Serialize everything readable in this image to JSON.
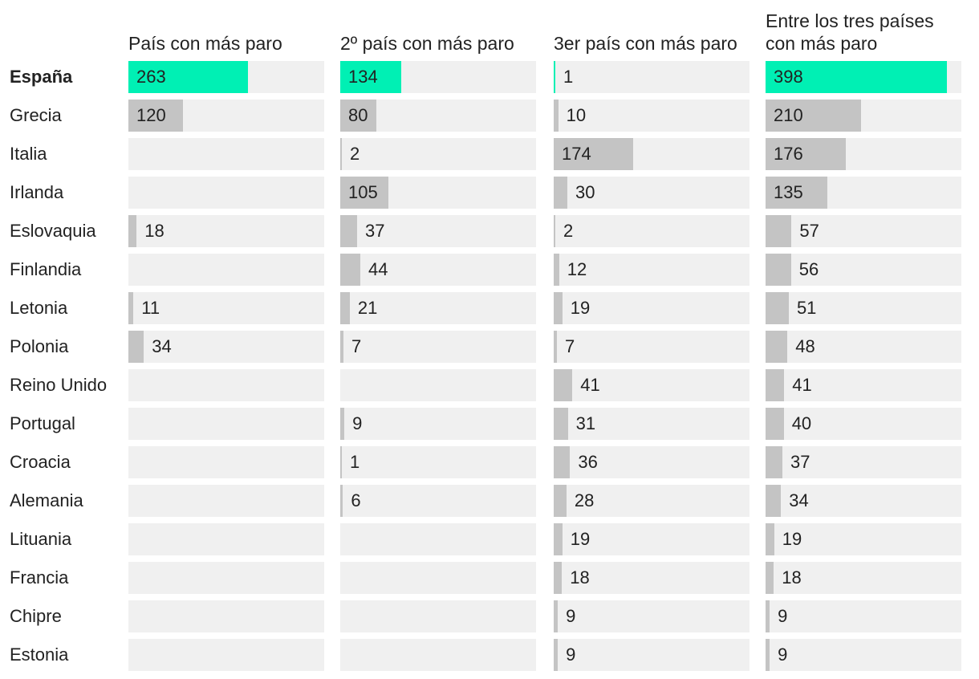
{
  "chart_data": {
    "type": "bar",
    "title": "",
    "xlabel": "",
    "ylabel": "",
    "columns": [
      "País con más paro",
      "2º país con más paro",
      "3er país con más paro",
      "Entre los tres países\ncon más paro"
    ],
    "scale_max": [
      430,
      430,
      430,
      430
    ],
    "countries": [
      "España",
      "Grecia",
      "Italia",
      "Irlanda",
      "Eslovaquia",
      "Finlandia",
      "Letonia",
      "Polonia",
      "Reino Unido",
      "Portugal",
      "Croacia",
      "Alemania",
      "Lituania",
      "Francia",
      "Chipre",
      "Estonia"
    ],
    "highlight_country": "España",
    "series": [
      {
        "values": [
          263,
          120,
          null,
          null,
          18,
          null,
          11,
          34,
          null,
          null,
          null,
          null,
          null,
          null,
          null,
          null
        ]
      },
      {
        "values": [
          134,
          80,
          2,
          105,
          37,
          44,
          21,
          7,
          null,
          9,
          1,
          6,
          null,
          null,
          null,
          null
        ]
      },
      {
        "values": [
          1,
          10,
          174,
          30,
          2,
          12,
          19,
          7,
          41,
          31,
          36,
          28,
          19,
          18,
          9,
          9
        ]
      },
      {
        "values": [
          398,
          210,
          176,
          135,
          57,
          56,
          51,
          48,
          41,
          40,
          37,
          34,
          19,
          18,
          9,
          9
        ]
      }
    ],
    "colors": {
      "highlight": "#00f0b4",
      "bar": "#c4c4c4",
      "background": "#f0f0f0"
    }
  }
}
